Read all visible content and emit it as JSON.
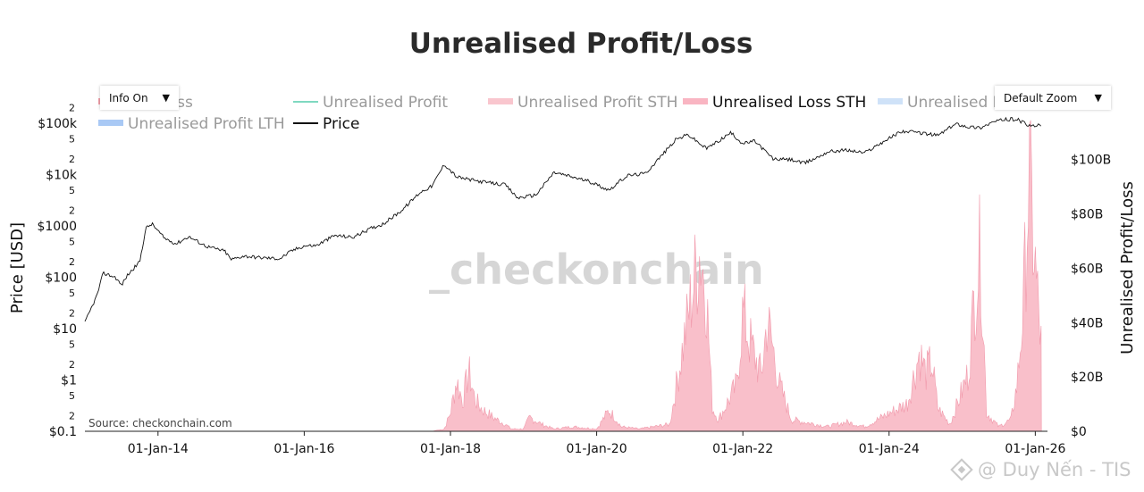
{
  "chart_data": {
    "type": "area",
    "title": "Unrealised Profit/Loss",
    "y_left_label": "Price [USD]",
    "y_right_label": "Unrealised Profit/Loss",
    "y_left_scale": "log",
    "y_left_ticks": [
      "$0.1",
      "$1",
      "$10",
      "$100",
      "$1000",
      "$10k",
      "$100k"
    ],
    "y_left_minor": [
      "2",
      "5"
    ],
    "y_right_ticks": [
      "$0",
      "$20B",
      "$40B",
      "$60B",
      "$80B",
      "$100B"
    ],
    "y_right_range": [
      0,
      115
    ],
    "x_ticks": [
      "01-Jan-14",
      "01-Jan-16",
      "01-Jan-18",
      "01-Jan-20",
      "01-Jan-22",
      "01-Jan-24",
      "01-Jan-26"
    ],
    "x_range": [
      "2013-01",
      "2026-03"
    ],
    "legend": [
      {
        "name": "sed Loss",
        "color": "#f4a3ad",
        "visible": false
      },
      {
        "name": "Unrealised Profit",
        "color": "#7fd9c0",
        "visible": false
      },
      {
        "name": "Unrealised Profit STH",
        "color": "#f9c6ce",
        "visible": false
      },
      {
        "name": "Unrealised Loss STH",
        "color": "#f9b5c2",
        "visible": true
      },
      {
        "name": "Unrealised L",
        "color": "#cfe2f8",
        "visible": false
      },
      {
        "name": "Unrealised Profit LTH",
        "color": "#a9c9f5",
        "visible": false
      },
      {
        "name": "Price",
        "color": "#111111",
        "visible": true
      }
    ],
    "series": [
      {
        "name": "Price",
        "axis": "left",
        "unit": "USD",
        "points": [
          [
            "2013-01",
            13
          ],
          [
            "2013-03",
            45
          ],
          [
            "2013-04",
            120
          ],
          [
            "2013-05",
            110
          ],
          [
            "2013-06",
            100
          ],
          [
            "2013-07",
            70
          ],
          [
            "2013-08",
            110
          ],
          [
            "2013-10",
            200
          ],
          [
            "2013-11",
            900
          ],
          [
            "2013-12",
            1100
          ],
          [
            "2014-01",
            800
          ],
          [
            "2014-02",
            580
          ],
          [
            "2014-04",
            450
          ],
          [
            "2014-06",
            620
          ],
          [
            "2014-09",
            400
          ],
          [
            "2014-12",
            320
          ],
          [
            "2015-01",
            220
          ],
          [
            "2015-03",
            260
          ],
          [
            "2015-06",
            240
          ],
          [
            "2015-09",
            230
          ],
          [
            "2015-11",
            330
          ],
          [
            "2016-01",
            410
          ],
          [
            "2016-03",
            415
          ],
          [
            "2016-06",
            650
          ],
          [
            "2016-09",
            600
          ],
          [
            "2016-12",
            900
          ],
          [
            "2017-02",
            1100
          ],
          [
            "2017-05",
            2000
          ],
          [
            "2017-08",
            4500
          ],
          [
            "2017-10",
            6000
          ],
          [
            "2017-12",
            16000
          ],
          [
            "2018-02",
            9000
          ],
          [
            "2018-04",
            8000
          ],
          [
            "2018-07",
            7000
          ],
          [
            "2018-10",
            6300
          ],
          [
            "2018-12",
            3500
          ],
          [
            "2019-03",
            4000
          ],
          [
            "2019-06",
            11000
          ],
          [
            "2019-09",
            9000
          ],
          [
            "2019-12",
            7200
          ],
          [
            "2020-03",
            5000
          ],
          [
            "2020-06",
            9500
          ],
          [
            "2020-09",
            10500
          ],
          [
            "2020-12",
            26000
          ],
          [
            "2021-02",
            48000
          ],
          [
            "2021-04",
            60000
          ],
          [
            "2021-07",
            32000
          ],
          [
            "2021-09",
            45000
          ],
          [
            "2021-11",
            65000
          ],
          [
            "2022-01",
            40000
          ],
          [
            "2022-03",
            45000
          ],
          [
            "2022-06",
            20000
          ],
          [
            "2022-09",
            19500
          ],
          [
            "2022-11",
            16500
          ],
          [
            "2023-01",
            21000
          ],
          [
            "2023-03",
            28000
          ],
          [
            "2023-06",
            30000
          ],
          [
            "2023-09",
            26500
          ],
          [
            "2023-11",
            37000
          ],
          [
            "2024-03",
            70000
          ],
          [
            "2024-06",
            65000
          ],
          [
            "2024-09",
            58000
          ],
          [
            "2024-12",
            98000
          ],
          [
            "2025-02",
            85000
          ],
          [
            "2025-04",
            82000
          ],
          [
            "2025-06",
            105000
          ],
          [
            "2025-08",
            118000
          ],
          [
            "2025-10",
            120000
          ],
          [
            "2025-12",
            88000
          ],
          [
            "2026-02",
            90000
          ]
        ]
      },
      {
        "name": "Unrealised Loss STH",
        "axis": "right",
        "unit": "USD billions",
        "points": [
          [
            "2013-01",
            0
          ],
          [
            "2017-10",
            0
          ],
          [
            "2017-12",
            1
          ],
          [
            "2018-01",
            8
          ],
          [
            "2018-02",
            22
          ],
          [
            "2018-03",
            13
          ],
          [
            "2018-04",
            26
          ],
          [
            "2018-05",
            14
          ],
          [
            "2018-06",
            10
          ],
          [
            "2018-08",
            6
          ],
          [
            "2018-10",
            3
          ],
          [
            "2018-11",
            1
          ],
          [
            "2019-01",
            1
          ],
          [
            "2019-02",
            6
          ],
          [
            "2019-04",
            3
          ],
          [
            "2019-06",
            1
          ],
          [
            "2019-09",
            2
          ],
          [
            "2020-01",
            1
          ],
          [
            "2020-03",
            9
          ],
          [
            "2020-04",
            6
          ],
          [
            "2020-05",
            2
          ],
          [
            "2020-08",
            1
          ],
          [
            "2021-01",
            3
          ],
          [
            "2021-05",
            65
          ],
          [
            "2021-06",
            78
          ],
          [
            "2021-07",
            60
          ],
          [
            "2021-08",
            10
          ],
          [
            "2021-09",
            5
          ],
          [
            "2021-12",
            20
          ],
          [
            "2022-01",
            52
          ],
          [
            "2022-02",
            40
          ],
          [
            "2022-04",
            24
          ],
          [
            "2022-05",
            48
          ],
          [
            "2022-06",
            35
          ],
          [
            "2022-07",
            20
          ],
          [
            "2022-09",
            5
          ],
          [
            "2022-11",
            4
          ],
          [
            "2023-01",
            3
          ],
          [
            "2023-03",
            2
          ],
          [
            "2023-06",
            4
          ],
          [
            "2023-09",
            2
          ],
          [
            "2024-04",
            12
          ],
          [
            "2024-06",
            34
          ],
          [
            "2024-07",
            25
          ],
          [
            "2024-08",
            30
          ],
          [
            "2024-09",
            10
          ],
          [
            "2024-11",
            3
          ],
          [
            "2025-02",
            25
          ],
          [
            "2025-03",
            58
          ],
          [
            "2025-04",
            79
          ],
          [
            "2025-05",
            8
          ],
          [
            "2025-07",
            2
          ],
          [
            "2025-09",
            5
          ],
          [
            "2025-10",
            20
          ],
          [
            "2025-11",
            52
          ],
          [
            "2025-12",
            110
          ],
          [
            "2026-01",
            70
          ],
          [
            "2026-02",
            36
          ]
        ]
      }
    ]
  },
  "controls": {
    "info_label": "Info On",
    "zoom_label": "Default Zoom",
    "caret": "▼"
  },
  "source": "Source: checkonchain.com",
  "watermark": "_checkonchain",
  "credit": "@ Duy Nến - TIS",
  "colors": {
    "price": "#111111",
    "loss_sth_fill": "#f9bfca",
    "loss_sth_line": "#f199ab",
    "axis": "#222222"
  }
}
